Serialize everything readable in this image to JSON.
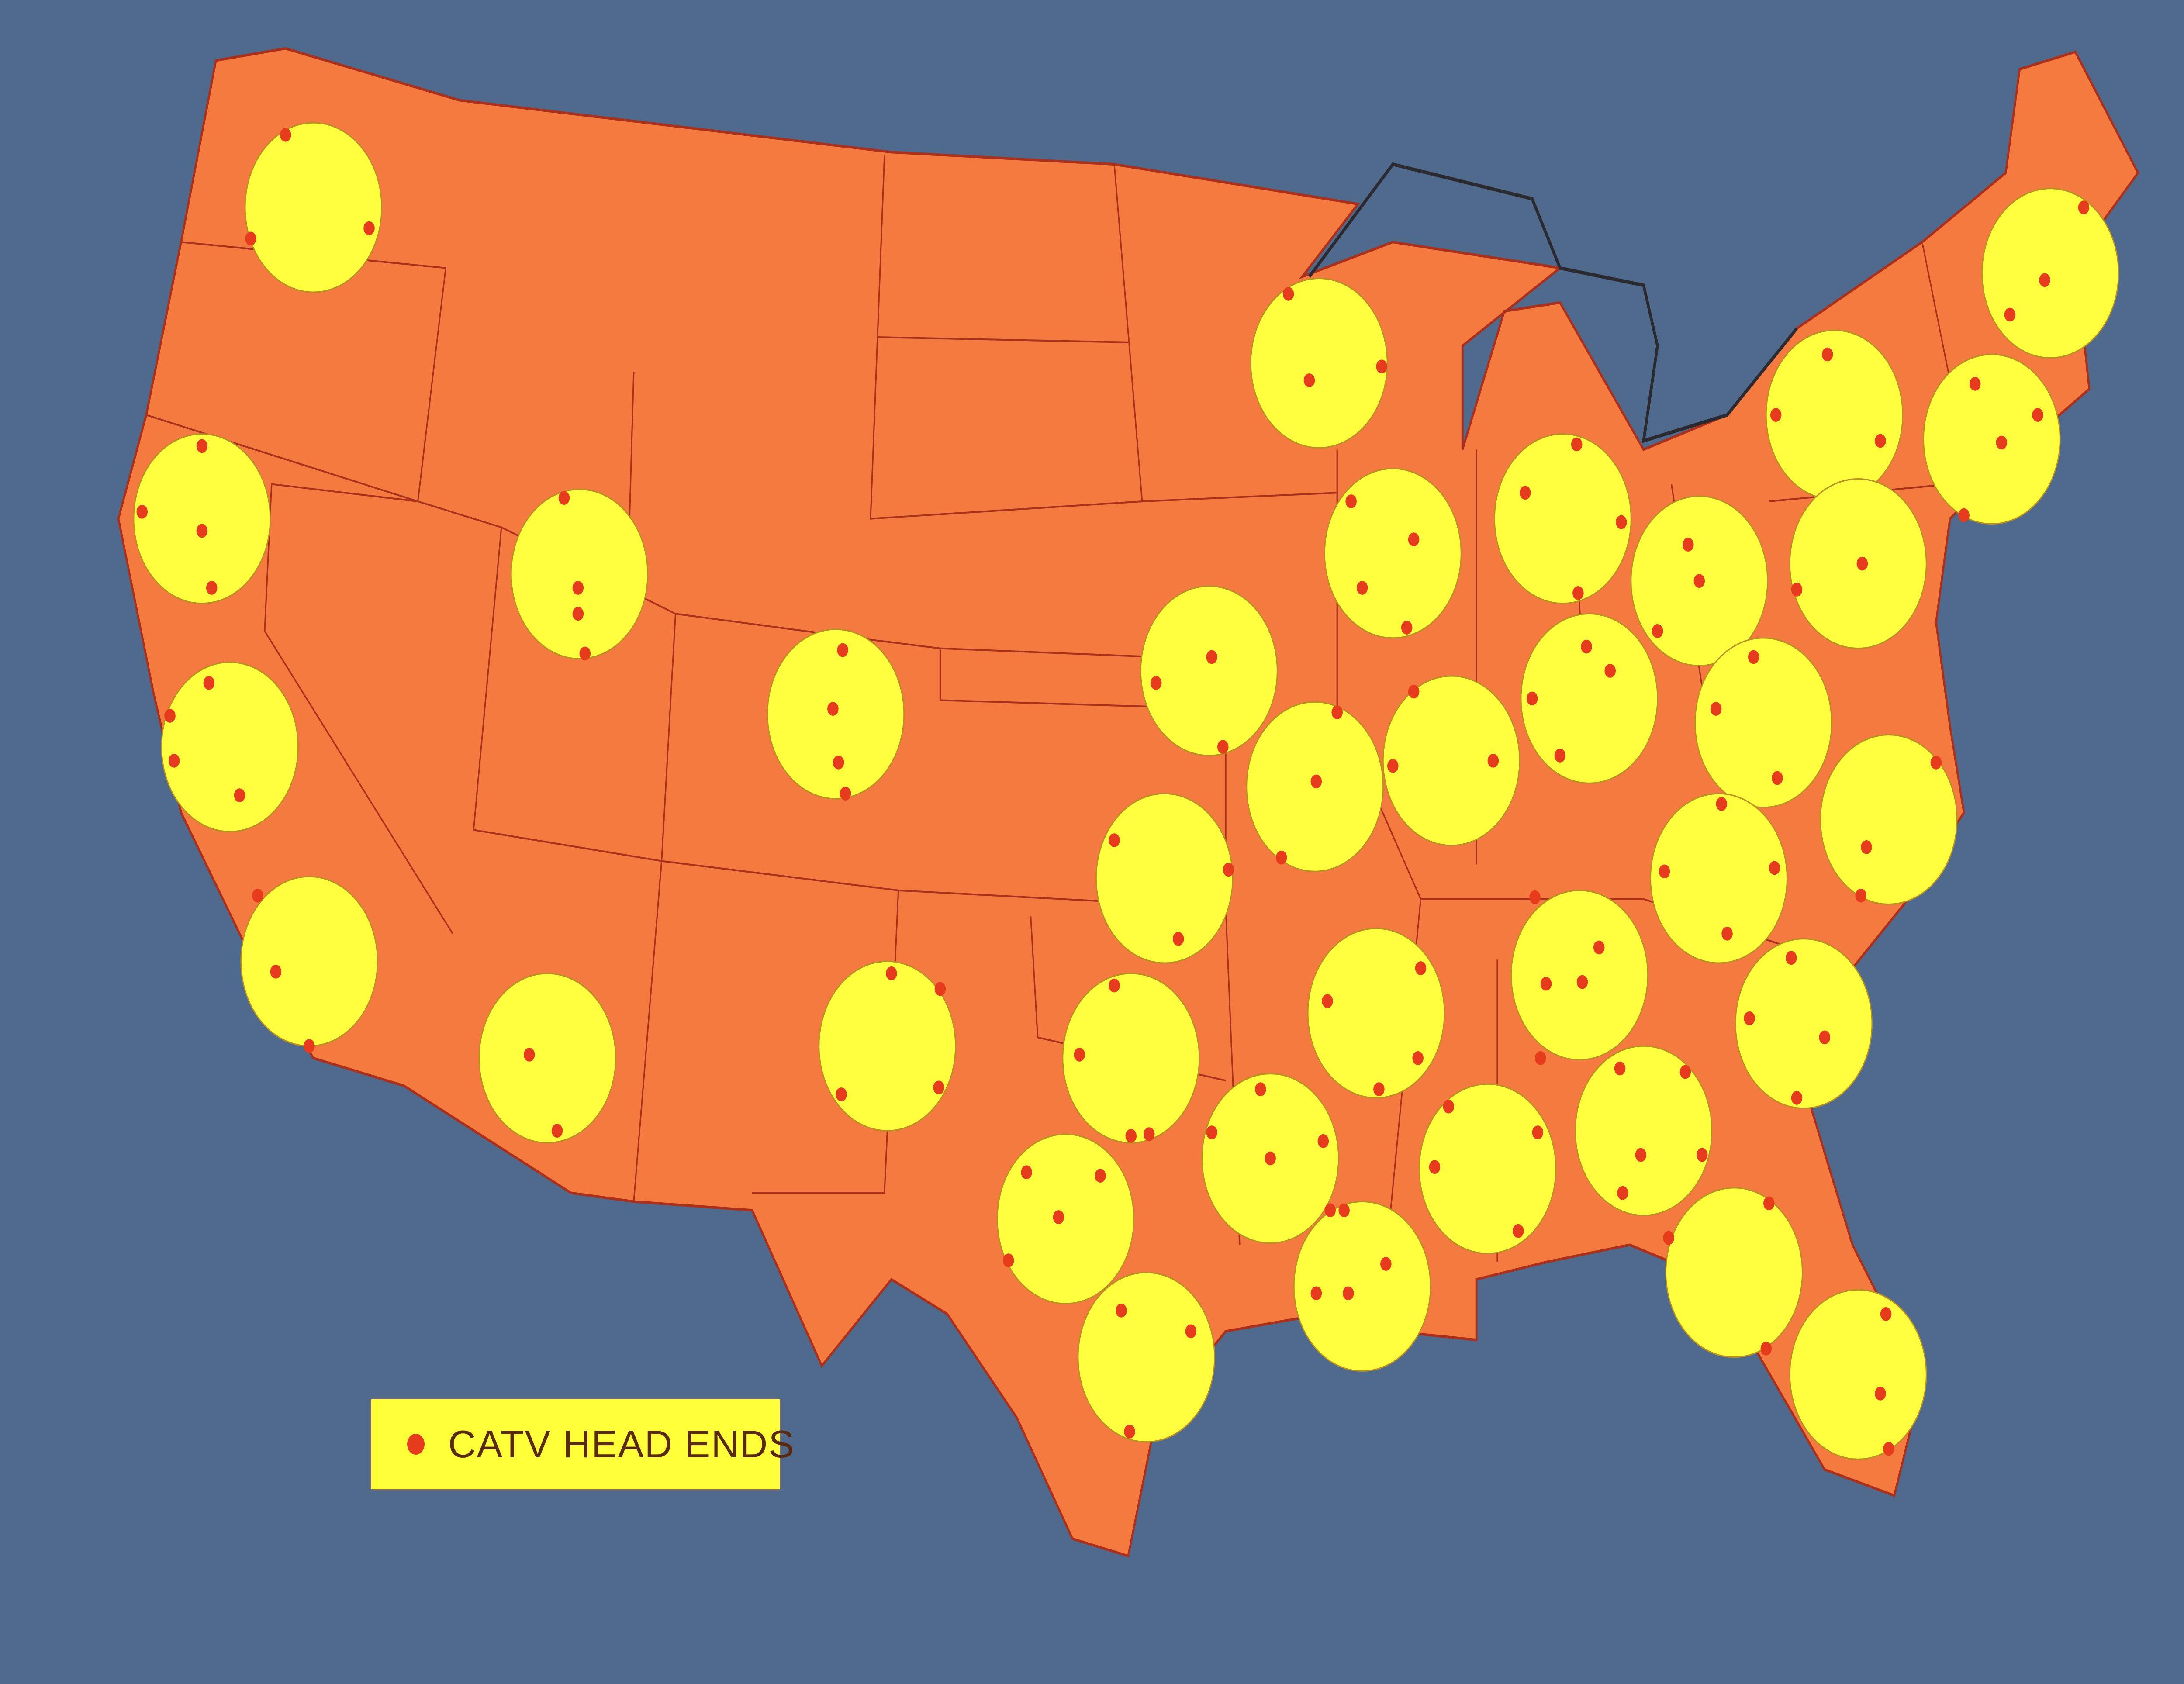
{
  "legend": {
    "label": "CATV HEAD ENDS",
    "marker_icon": "red-dot"
  },
  "colors": {
    "background": "#4f6a8c",
    "land": "#f57a40",
    "borders": "#a8301c",
    "coverage_circle": "#ffff40",
    "head_end_dot": "#e63b1c",
    "lakes_outline": "#2a2a30"
  }
}
